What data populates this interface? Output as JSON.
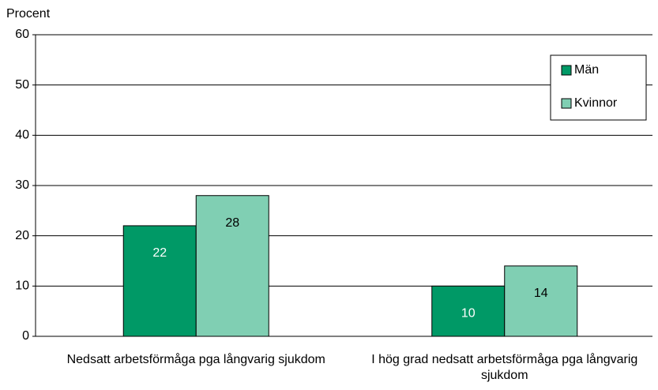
{
  "chart_data": {
    "type": "bar",
    "y_label": "Procent",
    "categories": [
      "Nedsatt arbetsförmåga pga långvarig sjukdom",
      "I hög grad nedsatt arbetsförmåga pga långvarig sjukdom"
    ],
    "series": [
      {
        "name": "Män",
        "color": "#009966",
        "label_color": "#ffffff",
        "values": [
          22,
          10
        ]
      },
      {
        "name": "Kvinnor",
        "color": "#80cfb3",
        "label_color": "#000000",
        "values": [
          28,
          14
        ]
      }
    ],
    "ylim": [
      0,
      60
    ],
    "yticks": [
      0,
      10,
      20,
      30,
      40,
      50,
      60
    ],
    "grid": true,
    "legend": "upper right"
  }
}
